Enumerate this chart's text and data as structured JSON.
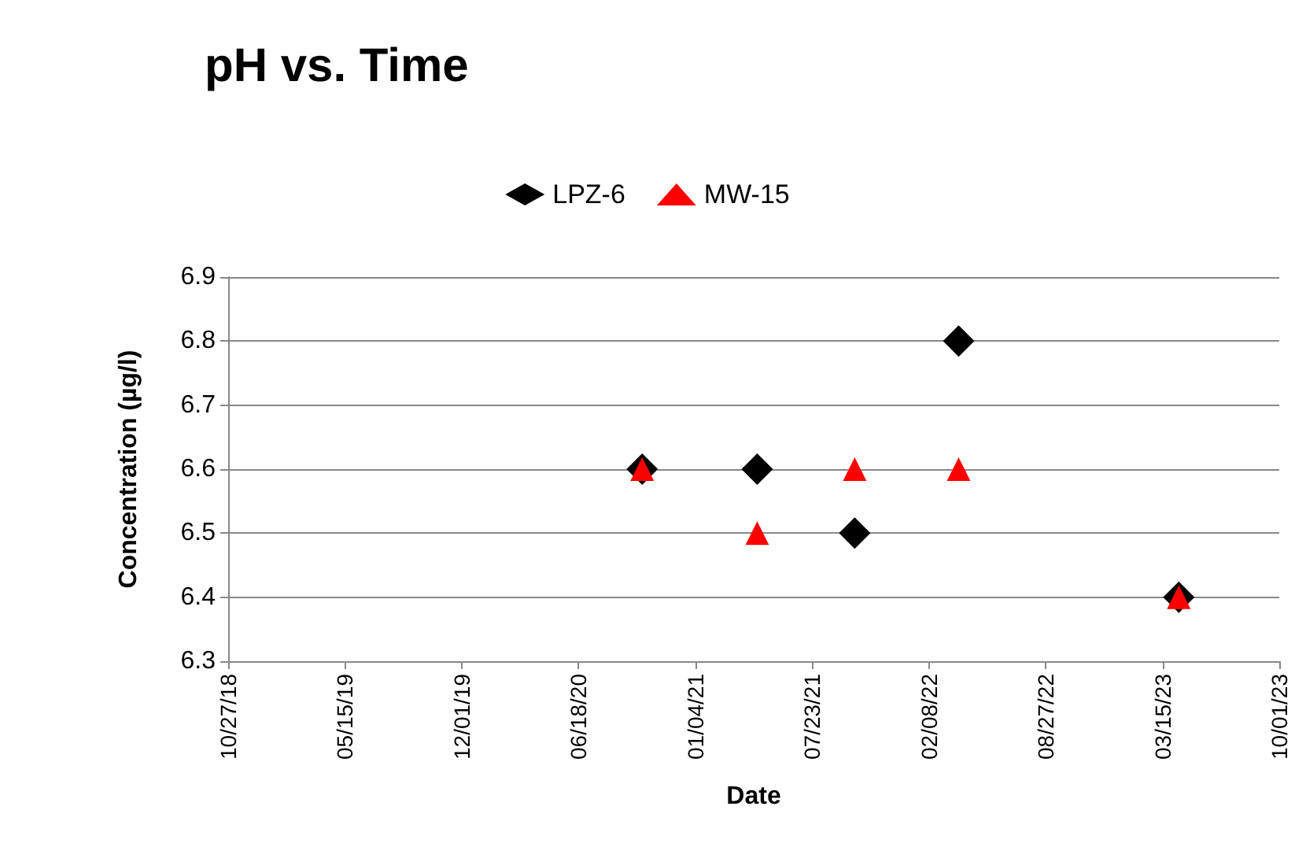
{
  "chart_data": {
    "type": "scatter",
    "title": "pH vs. Time",
    "xlabel": "Date",
    "ylabel": "Concentration (µg/l)",
    "x": [
      "2020-10-05",
      "2021-04-20",
      "2021-10-04",
      "2022-03-31",
      "2023-04-12"
    ],
    "series": [
      {
        "name": "LPZ-6",
        "color": "#000000",
        "marker": "diamond",
        "values": [
          6.6,
          6.6,
          6.5,
          6.8,
          6.4
        ]
      },
      {
        "name": "MW-15",
        "color": "#ff0000",
        "marker": "triangle",
        "values": [
          6.6,
          6.5,
          6.6,
          6.6,
          6.4
        ]
      }
    ],
    "xlim": [
      "2018-10-27",
      "2023-10-01"
    ],
    "xticks": [
      {
        "value": "2018-10-27",
        "label": "10/27/18"
      },
      {
        "value": "2019-05-15",
        "label": "05/15/19"
      },
      {
        "value": "2019-12-01",
        "label": "12/01/19"
      },
      {
        "value": "2020-06-18",
        "label": "06/18/20"
      },
      {
        "value": "2021-01-04",
        "label": "01/04/21"
      },
      {
        "value": "2021-07-23",
        "label": "07/23/21"
      },
      {
        "value": "2022-02-08",
        "label": "02/08/22"
      },
      {
        "value": "2022-08-27",
        "label": "08/27/22"
      },
      {
        "value": "2023-03-15",
        "label": "03/15/23"
      },
      {
        "value": "2023-10-01",
        "label": "10/01/23"
      }
    ],
    "ylim": [
      6.3,
      6.9
    ],
    "yticks": [
      6.3,
      6.4,
      6.5,
      6.6,
      6.7,
      6.8,
      6.9
    ],
    "grid": "y",
    "legend": "top"
  }
}
